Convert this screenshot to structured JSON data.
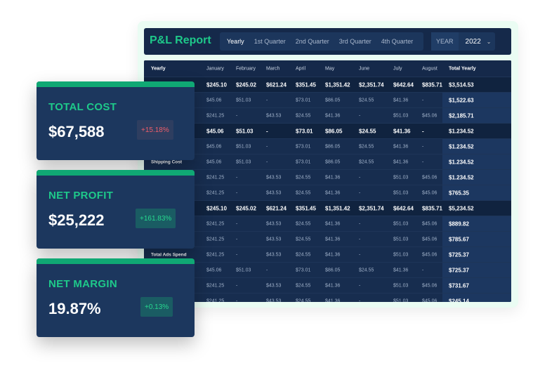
{
  "header": {
    "title": "P&L Report",
    "tabs": [
      "Yearly",
      "1st Quarter",
      "2nd Quarter",
      "3rd Quarter",
      "4th Quarter"
    ],
    "active_tab": "Yearly",
    "year_label": "YEAR",
    "year_value": "2022"
  },
  "table": {
    "columns": [
      "Yearly",
      "January",
      "February",
      "March",
      "April",
      "May",
      "June",
      "July",
      "August",
      "Total Yearly"
    ],
    "rows": [
      {
        "label": "",
        "bold": true,
        "cells": [
          "$245.10",
          "$245.02",
          "$621.24",
          "$351.45",
          "$1,351.42",
          "$2,351.74",
          "$642.64",
          "$835.71"
        ],
        "total": "$3,514.53"
      },
      {
        "label": "",
        "bold": false,
        "cells": [
          "$45.06",
          "$51.03",
          "-",
          "$73.01",
          "$86.05",
          "$24.55",
          "$41.36",
          "-"
        ],
        "total": "$1,522.63"
      },
      {
        "label": "",
        "bold": false,
        "cells": [
          "$241.25",
          "-",
          "$43.53",
          "$24.55",
          "$41.36",
          "-",
          "$51.03",
          "$45.06"
        ],
        "total": "$2,185.71"
      },
      {
        "label": "",
        "bold": true,
        "cells": [
          "$45.06",
          "$51.03",
          "-",
          "$73.01",
          "$86.05",
          "$24.55",
          "$41.36",
          "-"
        ],
        "total": "$1.234.52"
      },
      {
        "label": "",
        "bold": false,
        "cells": [
          "$45.06",
          "$51.03",
          "-",
          "$73.01",
          "$86.05",
          "$24.55",
          "$41.36",
          "-"
        ],
        "total": "$1.234.52"
      },
      {
        "label": "Shipping Cost",
        "bold": false,
        "cells": [
          "$45.06",
          "$51.03",
          "-",
          "$73.01",
          "$86.05",
          "$24.55",
          "$41.36",
          "-"
        ],
        "total": "$1.234.52"
      },
      {
        "label": "",
        "bold": false,
        "cells": [
          "$241.25",
          "-",
          "$43.53",
          "$24.55",
          "$41.36",
          "-",
          "$51.03",
          "$45.06"
        ],
        "total": "$1.234.52"
      },
      {
        "label": "",
        "bold": false,
        "cells": [
          "$241.25",
          "-",
          "$43.53",
          "$24.55",
          "$41.36",
          "-",
          "$51.03",
          "$45.06"
        ],
        "total": "$765.35"
      },
      {
        "label": "",
        "bold": true,
        "cells": [
          "$245.10",
          "$245.02",
          "$621.24",
          "$351.45",
          "$1,351.42",
          "$2,351.74",
          "$642.64",
          "$835.71"
        ],
        "total": "$5,234.52"
      },
      {
        "label": "",
        "bold": false,
        "cells": [
          "$241.25",
          "-",
          "$43.53",
          "$24.55",
          "$41.36",
          "-",
          "$51.03",
          "$45.06"
        ],
        "total": "$889.82"
      },
      {
        "label": "",
        "bold": false,
        "cells": [
          "$241.25",
          "-",
          "$43.53",
          "$24.55",
          "$41.36",
          "-",
          "$51.03",
          "$45.06"
        ],
        "total": "$785.67"
      },
      {
        "label": "Total Ads Spend",
        "bold": false,
        "cells": [
          "$241.25",
          "-",
          "$43.53",
          "$24.55",
          "$41.36",
          "-",
          "$51.03",
          "$45.06"
        ],
        "total": "$725.37"
      },
      {
        "label": "",
        "bold": false,
        "cells": [
          "$45.06",
          "$51.03",
          "-",
          "$73.01",
          "$86.05",
          "$24.55",
          "$41.36",
          "-"
        ],
        "total": "$725.37"
      },
      {
        "label": "",
        "bold": false,
        "cells": [
          "$241.25",
          "-",
          "$43.53",
          "$24.55",
          "$41.36",
          "-",
          "$51.03",
          "$45.06"
        ],
        "total": "$731.67"
      },
      {
        "label": "",
        "bold": false,
        "cells": [
          "$241.25",
          "-",
          "$43.53",
          "$24.55",
          "$41.36",
          "-",
          "$51.03",
          "$45.06"
        ],
        "total": "$245.14"
      }
    ]
  },
  "cards": [
    {
      "title": "TOTAL COST",
      "value": "$67,588",
      "change": "+15.18%",
      "trend": "negative"
    },
    {
      "title": "NET PROFIT",
      "value": "$25,222",
      "change": "+161.83%",
      "trend": "positive"
    },
    {
      "title": "NET MARGIN",
      "value": "19.87%",
      "change": "+0.13%",
      "trend": "positive"
    }
  ]
}
